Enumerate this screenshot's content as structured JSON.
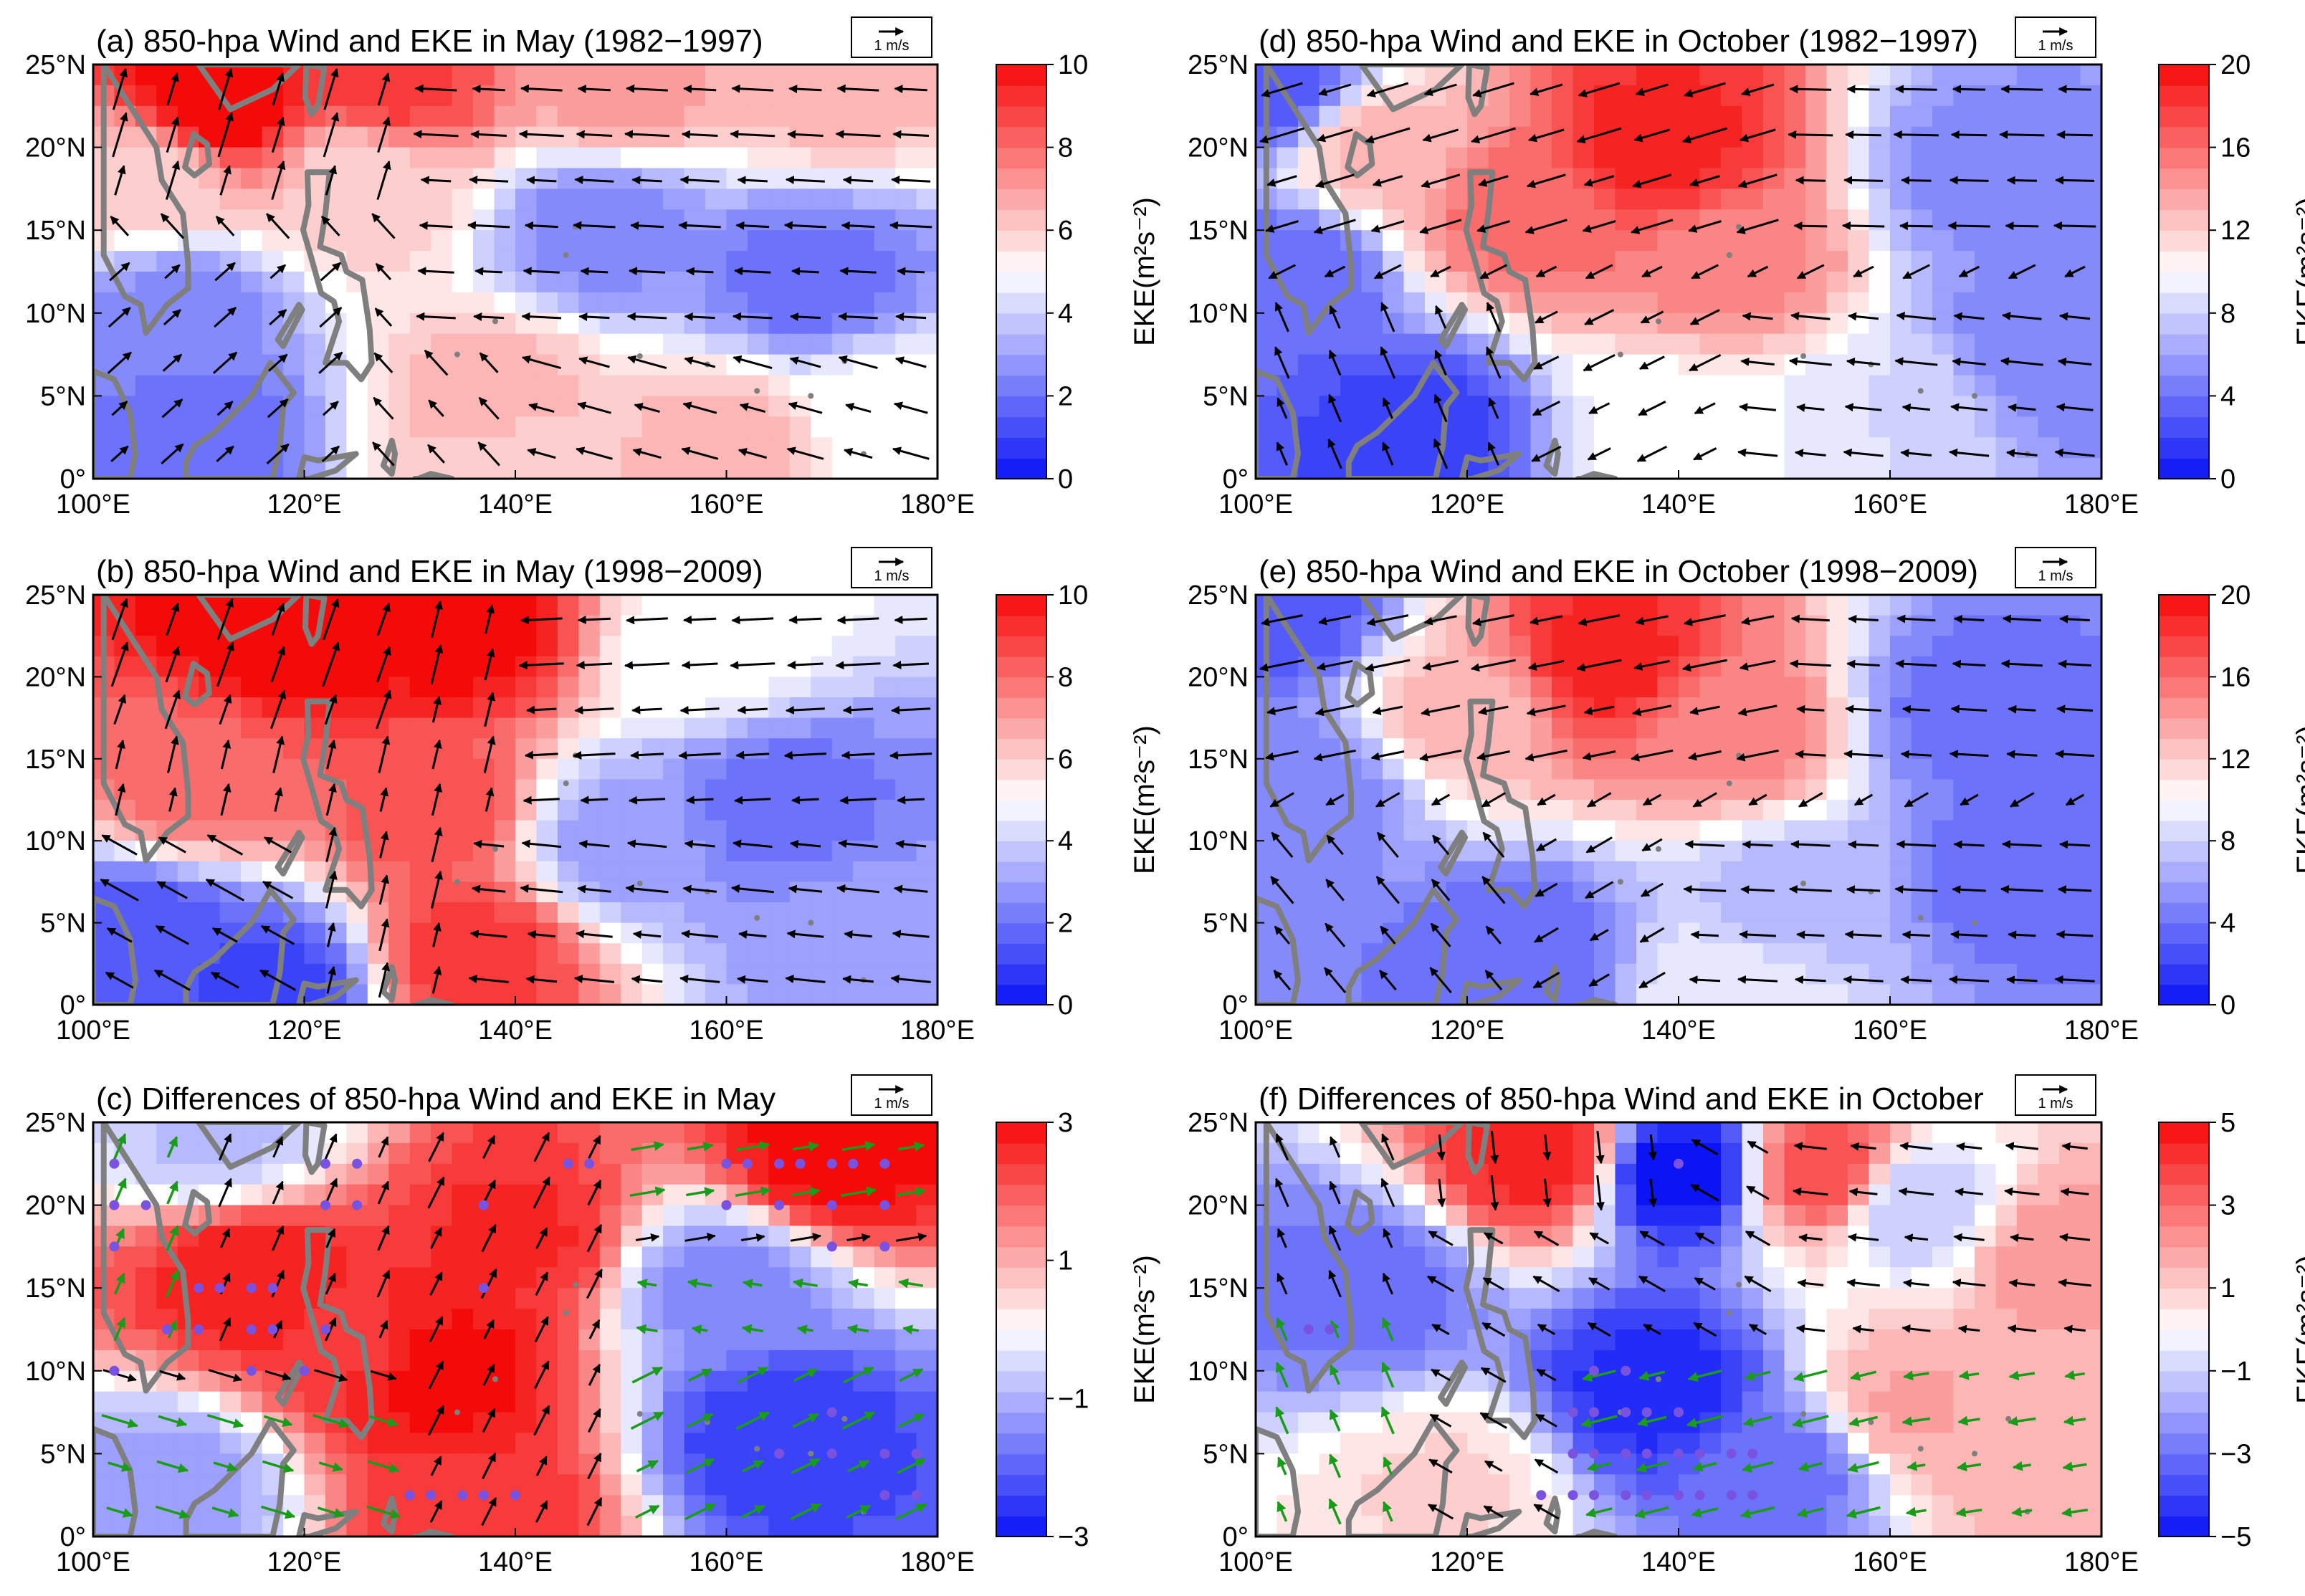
{
  "figure": {
    "palette": {
      "blue": "#0a14f5",
      "white": "#ffffff",
      "red": "#f50a0a",
      "wind_black": "#000000",
      "wind_green": "#1a9c1a",
      "coast": "#7f7f7f",
      "dot": "#7a52e0"
    },
    "xticks": [
      "100°E",
      "120°E",
      "140°E",
      "160°E",
      "180°E"
    ],
    "yticks": [
      "0°",
      "5°N",
      "10°N",
      "15°N",
      "20°N",
      "25°N"
    ],
    "colorbar_label": "EKE(m²s⁻²)",
    "ref_vector_label": "1 m/s"
  },
  "chart_data": [
    {
      "id": "a",
      "type": "heatmap",
      "title": "(a) 850-hpa Wind and EKE in May (1982−1997)",
      "xlim": [
        100,
        180
      ],
      "ylim": [
        0,
        25
      ],
      "colorbar": {
        "min": 0,
        "max": 10,
        "ticks": [
          "10",
          "8",
          "6",
          "4",
          "2",
          "0"
        ]
      },
      "fields": [
        {
          "lon": 112,
          "lat": 23,
          "value": 10.5
        },
        {
          "lon": 128,
          "lat": 24,
          "value": 9.0
        },
        {
          "lon": 150,
          "lat": 24,
          "value": 7.0
        },
        {
          "lon": 170,
          "lat": 24,
          "value": 6.5
        },
        {
          "lon": 105,
          "lat": 18,
          "value": 6.0
        },
        {
          "lon": 125,
          "lat": 18,
          "value": 6.0
        },
        {
          "lon": 108,
          "lat": 10,
          "value": 2.5
        },
        {
          "lon": 148,
          "lat": 15,
          "value": 2.5
        },
        {
          "lon": 168,
          "lat": 12,
          "value": 2.0
        },
        {
          "lon": 110,
          "lat": 3,
          "value": 2.0
        },
        {
          "lon": 138,
          "lat": 5,
          "value": 6.5
        },
        {
          "lon": 140,
          "lat": 1,
          "value": 6.0
        },
        {
          "lon": 160,
          "lat": 2,
          "value": 6.5
        },
        {
          "lon": 175,
          "lat": 4,
          "value": 5.0
        }
      ],
      "wind_regime": "may_early"
    },
    {
      "id": "b",
      "type": "heatmap",
      "title": "(b) 850-hpa Wind and EKE in May (1998−2009)",
      "xlim": [
        100,
        180
      ],
      "ylim": [
        0,
        25
      ],
      "colorbar": {
        "min": 0,
        "max": 10,
        "ticks": [
          "10",
          "8",
          "6",
          "4",
          "2",
          "0"
        ]
      },
      "fields": [
        {
          "lon": 118,
          "lat": 23,
          "value": 10.5
        },
        {
          "lon": 135,
          "lat": 23,
          "value": 10.0
        },
        {
          "lon": 110,
          "lat": 14,
          "value": 8.0
        },
        {
          "lon": 132,
          "lat": 12,
          "value": 8.5
        },
        {
          "lon": 158,
          "lat": 22,
          "value": 5.0
        },
        {
          "lon": 165,
          "lat": 12,
          "value": 2.0
        },
        {
          "lon": 150,
          "lat": 10,
          "value": 3.0
        },
        {
          "lon": 105,
          "lat": 4,
          "value": 1.5
        },
        {
          "lon": 117,
          "lat": 1,
          "value": 1.0
        },
        {
          "lon": 136,
          "lat": 3,
          "value": 9.0
        },
        {
          "lon": 172,
          "lat": 4,
          "value": 3.0
        }
      ],
      "wind_regime": "may_late"
    },
    {
      "id": "c",
      "type": "heatmap",
      "title": "(c) Differences of 850-hpa Wind and EKE in May",
      "xlim": [
        100,
        180
      ],
      "ylim": [
        0,
        25
      ],
      "colorbar": {
        "min": -3,
        "max": 3,
        "ticks": [
          "3",
          "1",
          "−1",
          "−3"
        ]
      },
      "fields": [
        {
          "lon": 115,
          "lat": 16,
          "value": 2.8
        },
        {
          "lon": 125,
          "lat": 12,
          "value": 2.5
        },
        {
          "lon": 133,
          "lat": 10,
          "value": 3.0
        },
        {
          "lon": 140,
          "lat": 18,
          "value": 2.6
        },
        {
          "lon": 170,
          "lat": 23,
          "value": 3.0
        },
        {
          "lon": 160,
          "lat": 15,
          "value": -1.5
        },
        {
          "lon": 165,
          "lat": 6,
          "value": -2.5
        },
        {
          "lon": 108,
          "lat": 3,
          "value": -1.2
        },
        {
          "lon": 136,
          "lat": 2,
          "value": 2.5
        },
        {
          "lon": 112,
          "lat": 24,
          "value": -0.8
        }
      ],
      "wind_regime": "may_diff",
      "sig_dots": [
        [
          102,
          22.5
        ],
        [
          102,
          20
        ],
        [
          105,
          20
        ],
        [
          102,
          17.5
        ],
        [
          110,
          15
        ],
        [
          112,
          15
        ],
        [
          115,
          15
        ],
        [
          117,
          15
        ],
        [
          107,
          12.5
        ],
        [
          110,
          12.5
        ],
        [
          115,
          12.5
        ],
        [
          117,
          12.5
        ],
        [
          122,
          12.5
        ],
        [
          115,
          10
        ],
        [
          120,
          10
        ],
        [
          102,
          10
        ],
        [
          122,
          22.5
        ],
        [
          125,
          22.5
        ],
        [
          122,
          20
        ],
        [
          125,
          20
        ],
        [
          137,
          20
        ],
        [
          137,
          15
        ],
        [
          145,
          22.5
        ],
        [
          147,
          22.5
        ],
        [
          160,
          22.5
        ],
        [
          162,
          22.5
        ],
        [
          165,
          22.5
        ],
        [
          167,
          22.5
        ],
        [
          170,
          22.5
        ],
        [
          172,
          22.5
        ],
        [
          175,
          22.5
        ],
        [
          160,
          20
        ],
        [
          165,
          20
        ],
        [
          170,
          20
        ],
        [
          175,
          20
        ],
        [
          170,
          17.5
        ],
        [
          175,
          17.5
        ],
        [
          130,
          2.5
        ],
        [
          132,
          2.5
        ],
        [
          135,
          2.5
        ],
        [
          137,
          2.5
        ],
        [
          140,
          2.5
        ],
        [
          170,
          7.5
        ],
        [
          165,
          5
        ],
        [
          170,
          5
        ],
        [
          175,
          5
        ],
        [
          178,
          5
        ],
        [
          175,
          2.5
        ],
        [
          178,
          2.5
        ]
      ]
    },
    {
      "id": "d",
      "type": "heatmap",
      "title": "(d) 850-hpa Wind and EKE in October (1982−1997)",
      "xlim": [
        100,
        180
      ],
      "ylim": [
        0,
        25
      ],
      "colorbar": {
        "min": 0,
        "max": 20,
        "ticks": [
          "20",
          "16",
          "12",
          "8",
          "4",
          "0"
        ]
      },
      "fields": [
        {
          "lon": 138,
          "lat": 20,
          "value": 19.0
        },
        {
          "lon": 125,
          "lat": 16,
          "value": 16.0
        },
        {
          "lon": 145,
          "lat": 13,
          "value": 15.0
        },
        {
          "lon": 112,
          "lat": 20,
          "value": 13.0
        },
        {
          "lon": 102,
          "lat": 24,
          "value": 3.0
        },
        {
          "lon": 170,
          "lat": 18,
          "value": 5.0
        },
        {
          "lon": 175,
          "lat": 8,
          "value": 4.5
        },
        {
          "lon": 115,
          "lat": 3,
          "value": 2.0
        },
        {
          "lon": 140,
          "lat": 3,
          "value": 10.0
        },
        {
          "lon": 160,
          "lat": 4,
          "value": 8.5
        },
        {
          "lon": 103,
          "lat": 12,
          "value": 3.5
        }
      ],
      "wind_regime": "oct_early"
    },
    {
      "id": "e",
      "type": "heatmap",
      "title": "(e) 850-hpa Wind and EKE in October (1998−2009)",
      "xlim": [
        100,
        180
      ],
      "ylim": [
        0,
        25
      ],
      "colorbar": {
        "min": 0,
        "max": 20,
        "ticks": [
          "20",
          "16",
          "12",
          "8",
          "4",
          "0"
        ]
      },
      "fields": [
        {
          "lon": 133,
          "lat": 21,
          "value": 19.0
        },
        {
          "lon": 145,
          "lat": 17,
          "value": 15.0
        },
        {
          "lon": 120,
          "lat": 18,
          "value": 13.0
        },
        {
          "lon": 102,
          "lat": 24,
          "value": 3.0
        },
        {
          "lon": 105,
          "lat": 13,
          "value": 5.0
        },
        {
          "lon": 168,
          "lat": 18,
          "value": 4.0
        },
        {
          "lon": 172,
          "lat": 8,
          "value": 4.0
        },
        {
          "lon": 125,
          "lat": 3,
          "value": 3.5
        },
        {
          "lon": 150,
          "lat": 6,
          "value": 7.0
        },
        {
          "lon": 145,
          "lat": 1,
          "value": 9.5
        }
      ],
      "wind_regime": "oct_late"
    },
    {
      "id": "f",
      "type": "heatmap",
      "title": "(f) Differences of 850-hpa Wind and EKE in October",
      "xlim": [
        100,
        180
      ],
      "ylim": [
        0,
        25
      ],
      "colorbar": {
        "min": -5,
        "max": 5,
        "ticks": [
          "5",
          "3",
          "1",
          "−1",
          "−3",
          "−5"
        ]
      },
      "fields": [
        {
          "lon": 127,
          "lat": 23,
          "value": 4.5
        },
        {
          "lon": 154,
          "lat": 22,
          "value": 3.5
        },
        {
          "lon": 140,
          "lat": 22,
          "value": -5.0
        },
        {
          "lon": 110,
          "lat": 15,
          "value": -3.0
        },
        {
          "lon": 138,
          "lat": 9,
          "value": -4.5
        },
        {
          "lon": 150,
          "lat": 4,
          "value": -3.0
        },
        {
          "lon": 162,
          "lat": 8,
          "value": 1.8
        },
        {
          "lon": 176,
          "lat": 17,
          "value": 2.0
        },
        {
          "lon": 118,
          "lat": 3,
          "value": 0.8
        },
        {
          "lon": 172,
          "lat": 5,
          "value": 1.5
        },
        {
          "lon": 162,
          "lat": 20,
          "value": -1.2
        }
      ],
      "wind_regime": "oct_diff",
      "sig_dots": [
        [
          140,
          22.5
        ],
        [
          105,
          12.5
        ],
        [
          107,
          12.5
        ],
        [
          132,
          10
        ],
        [
          135,
          10
        ],
        [
          130,
          7.5
        ],
        [
          132,
          7.5
        ],
        [
          135,
          7.5
        ],
        [
          137,
          7.5
        ],
        [
          140,
          7.5
        ],
        [
          130,
          5
        ],
        [
          132,
          5
        ],
        [
          135,
          5
        ],
        [
          137,
          5
        ],
        [
          140,
          5
        ],
        [
          142,
          5
        ],
        [
          145,
          5
        ],
        [
          147,
          5
        ],
        [
          127,
          2.5
        ],
        [
          130,
          2.5
        ],
        [
          132,
          2.5
        ],
        [
          135,
          2.5
        ],
        [
          137,
          2.5
        ],
        [
          140,
          2.5
        ],
        [
          142,
          2.5
        ],
        [
          145,
          2.5
        ],
        [
          147,
          2.5
        ]
      ]
    }
  ]
}
